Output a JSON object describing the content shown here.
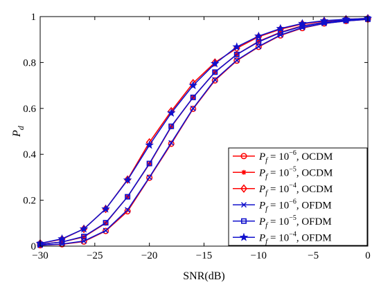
{
  "chart_data": {
    "type": "line",
    "xlabel": "SNR(dB)",
    "ylabel_base": "P",
    "ylabel_sub": "d",
    "xlim": [
      -30,
      0
    ],
    "ylim": [
      0,
      1
    ],
    "xticks": [
      -30,
      -25,
      -20,
      -15,
      -10,
      -5,
      0
    ],
    "yticks": [
      0,
      0.2,
      0.4,
      0.6,
      0.8,
      1
    ],
    "xtick_labels": [
      "−30",
      "−25",
      "−20",
      "−15",
      "−10",
      "−5",
      "0"
    ],
    "ytick_labels": [
      "0",
      "0.2",
      "0.4",
      "0.6",
      "0.8",
      "1"
    ],
    "grid": false,
    "legend_position": "bottom-right",
    "x": [
      -30,
      -28,
      -26,
      -24,
      -22,
      -20,
      -18,
      -16,
      -14,
      -12,
      -10,
      -8,
      -6,
      -4,
      -2,
      0
    ],
    "series": [
      {
        "label_pf": "P",
        "label_sub": "f",
        "label_eq": " = 10",
        "label_exp": "−6",
        "label_scheme": ", OCDM",
        "color": "#ff0000",
        "marker": "circle",
        "values": [
          0.004,
          0.008,
          0.02,
          0.066,
          0.152,
          0.298,
          0.446,
          0.598,
          0.722,
          0.808,
          0.868,
          0.918,
          0.95,
          0.97,
          0.981,
          0.988
        ]
      },
      {
        "label_pf": "P",
        "label_sub": "f",
        "label_eq": " = 10",
        "label_exp": "−5",
        "label_scheme": ", OCDM",
        "color": "#ff0000",
        "marker": "asterisk",
        "values": [
          0.008,
          0.018,
          0.04,
          0.1,
          0.215,
          0.358,
          0.52,
          0.648,
          0.758,
          0.835,
          0.892,
          0.932,
          0.96,
          0.975,
          0.984,
          0.99
        ]
      },
      {
        "label_pf": "P",
        "label_sub": "f",
        "label_eq": " = 10",
        "label_exp": "−4",
        "label_scheme": ", OCDM",
        "color": "#ff0000",
        "marker": "diamond",
        "values": [
          0.012,
          0.03,
          0.075,
          0.162,
          0.29,
          0.452,
          0.588,
          0.71,
          0.8,
          0.862,
          0.912,
          0.945,
          0.968,
          0.98,
          0.988,
          0.992
        ]
      },
      {
        "label_pf": "P",
        "label_sub": "f",
        "label_eq": " = 10",
        "label_exp": "−6",
        "label_scheme": ", OFDM",
        "color": "#1010cc",
        "marker": "x",
        "values": [
          0.004,
          0.009,
          0.022,
          0.068,
          0.158,
          0.3,
          0.45,
          0.6,
          0.725,
          0.81,
          0.87,
          0.92,
          0.952,
          0.97,
          0.981,
          0.988
        ]
      },
      {
        "label_pf": "P",
        "label_sub": "f",
        "label_eq": " = 10",
        "label_exp": "−5",
        "label_scheme": ", OFDM",
        "color": "#1010cc",
        "marker": "square",
        "values": [
          0.008,
          0.018,
          0.042,
          0.102,
          0.215,
          0.36,
          0.522,
          0.648,
          0.758,
          0.835,
          0.89,
          0.93,
          0.958,
          0.975,
          0.984,
          0.99
        ]
      },
      {
        "label_pf": "P",
        "label_sub": "f",
        "label_eq": " = 10",
        "label_exp": "−4",
        "label_scheme": ", OFDM",
        "color": "#1010cc",
        "marker": "star",
        "values": [
          0.012,
          0.032,
          0.075,
          0.162,
          0.288,
          0.44,
          0.58,
          0.7,
          0.795,
          0.868,
          0.915,
          0.948,
          0.97,
          0.982,
          0.988,
          0.992
        ]
      }
    ]
  }
}
